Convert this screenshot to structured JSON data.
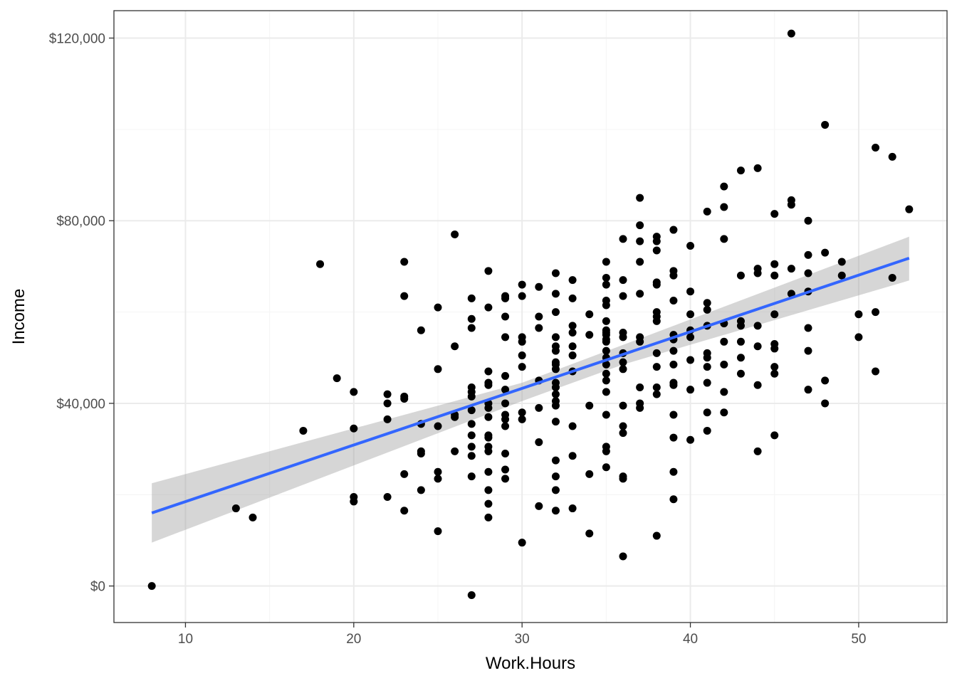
{
  "chart_data": {
    "type": "scatter",
    "title": "",
    "xlabel": "Work.Hours",
    "ylabel": "Income",
    "xlim": [
      5.75,
      55.25
    ],
    "ylim": [
      -8000,
      126000
    ],
    "x_ticks": [
      10,
      20,
      30,
      40,
      50
    ],
    "x_tick_labels": [
      "10",
      "20",
      "30",
      "40",
      "50"
    ],
    "y_ticks": [
      0,
      40000,
      80000,
      120000
    ],
    "y_tick_labels": [
      "$0",
      "$40,000",
      "$80,000",
      "$120,000"
    ],
    "grid": true,
    "theme": "bw",
    "colors": {
      "points": "#000000",
      "fit_line": "#3366ff",
      "ribbon": "#999999",
      "grid_major": "#ebebeb",
      "grid_minor": "#f5f5f5",
      "border": "#333333"
    },
    "fit": {
      "method": "lm",
      "x_range": [
        8,
        53
      ],
      "line": [
        [
          8,
          16000
        ],
        [
          53,
          71800
        ]
      ],
      "ci_lower": [
        [
          8,
          9500
        ],
        [
          30,
          40500
        ],
        [
          36,
          48500
        ],
        [
          53,
          66900
        ]
      ],
      "ci_upper": [
        [
          8,
          22500
        ],
        [
          30,
          44500
        ],
        [
          36,
          52800
        ],
        [
          53,
          76500
        ]
      ]
    },
    "points": [
      [
        8,
        0
      ],
      [
        13,
        17000
      ],
      [
        14,
        15000
      ],
      [
        17,
        34000
      ],
      [
        18,
        70500
      ],
      [
        19,
        45500
      ],
      [
        20,
        42500
      ],
      [
        20,
        34500
      ],
      [
        20,
        19500
      ],
      [
        20,
        18500
      ],
      [
        22,
        42000
      ],
      [
        22,
        40000
      ],
      [
        22,
        36500
      ],
      [
        22,
        19500
      ],
      [
        23,
        71000
      ],
      [
        23,
        63500
      ],
      [
        23,
        41500
      ],
      [
        23,
        41000
      ],
      [
        23,
        24500
      ],
      [
        23,
        16500
      ],
      [
        24,
        56000
      ],
      [
        24,
        35500
      ],
      [
        24,
        29500
      ],
      [
        24,
        29000
      ],
      [
        24,
        21000
      ],
      [
        25,
        61000
      ],
      [
        25,
        47500
      ],
      [
        25,
        35000
      ],
      [
        25,
        25000
      ],
      [
        25,
        23500
      ],
      [
        25,
        12000
      ],
      [
        26,
        77000
      ],
      [
        26,
        52500
      ],
      [
        26,
        37500
      ],
      [
        26,
        37000
      ],
      [
        26,
        29500
      ],
      [
        27,
        63000
      ],
      [
        27,
        58500
      ],
      [
        27,
        56500
      ],
      [
        27,
        43500
      ],
      [
        27,
        42500
      ],
      [
        27,
        41500
      ],
      [
        27,
        38500
      ],
      [
        27,
        35500
      ],
      [
        27,
        33000
      ],
      [
        27,
        30500
      ],
      [
        27,
        28500
      ],
      [
        27,
        24000
      ],
      [
        27,
        -2000
      ],
      [
        28,
        69000
      ],
      [
        28,
        61000
      ],
      [
        28,
        47000
      ],
      [
        28,
        44500
      ],
      [
        28,
        44000
      ],
      [
        28,
        40000
      ],
      [
        28,
        39000
      ],
      [
        28,
        37000
      ],
      [
        28,
        33000
      ],
      [
        28,
        32500
      ],
      [
        28,
        30500
      ],
      [
        28,
        29500
      ],
      [
        28,
        25000
      ],
      [
        28,
        21000
      ],
      [
        28,
        18000
      ],
      [
        28,
        15000
      ],
      [
        29,
        63500
      ],
      [
        29,
        63000
      ],
      [
        29,
        59000
      ],
      [
        29,
        54500
      ],
      [
        29,
        46000
      ],
      [
        29,
        43000
      ],
      [
        29,
        40000
      ],
      [
        29,
        37500
      ],
      [
        29,
        36500
      ],
      [
        29,
        35000
      ],
      [
        29,
        29000
      ],
      [
        29,
        25500
      ],
      [
        29,
        23500
      ],
      [
        30,
        66000
      ],
      [
        30,
        63500
      ],
      [
        30,
        54500
      ],
      [
        30,
        53500
      ],
      [
        30,
        50500
      ],
      [
        30,
        48000
      ],
      [
        30,
        38000
      ],
      [
        30,
        36500
      ],
      [
        30,
        9500
      ],
      [
        31,
        65500
      ],
      [
        31,
        59000
      ],
      [
        31,
        56500
      ],
      [
        31,
        45000
      ],
      [
        31,
        39000
      ],
      [
        31,
        31500
      ],
      [
        31,
        17500
      ],
      [
        32,
        68500
      ],
      [
        32,
        64000
      ],
      [
        32,
        60000
      ],
      [
        32,
        54500
      ],
      [
        32,
        52500
      ],
      [
        32,
        51500
      ],
      [
        32,
        49000
      ],
      [
        32,
        48500
      ],
      [
        32,
        47500
      ],
      [
        32,
        44500
      ],
      [
        32,
        43500
      ],
      [
        32,
        42000
      ],
      [
        32,
        40500
      ],
      [
        32,
        39500
      ],
      [
        32,
        36000
      ],
      [
        32,
        27500
      ],
      [
        32,
        24000
      ],
      [
        32,
        21000
      ],
      [
        32,
        16500
      ],
      [
        33,
        67000
      ],
      [
        33,
        63000
      ],
      [
        33,
        57000
      ],
      [
        33,
        55500
      ],
      [
        33,
        52500
      ],
      [
        33,
        50500
      ],
      [
        33,
        47000
      ],
      [
        33,
        35000
      ],
      [
        33,
        28500
      ],
      [
        33,
        17000
      ],
      [
        34,
        59500
      ],
      [
        34,
        55000
      ],
      [
        34,
        39500
      ],
      [
        34,
        24500
      ],
      [
        34,
        11500
      ],
      [
        35,
        71000
      ],
      [
        35,
        67500
      ],
      [
        35,
        66000
      ],
      [
        35,
        62500
      ],
      [
        35,
        61500
      ],
      [
        35,
        58000
      ],
      [
        35,
        56000
      ],
      [
        35,
        55500
      ],
      [
        35,
        55000
      ],
      [
        35,
        54000
      ],
      [
        35,
        53500
      ],
      [
        35,
        51500
      ],
      [
        35,
        50000
      ],
      [
        35,
        48500
      ],
      [
        35,
        46500
      ],
      [
        35,
        45000
      ],
      [
        35,
        42500
      ],
      [
        35,
        37500
      ],
      [
        35,
        30500
      ],
      [
        35,
        29500
      ],
      [
        35,
        26000
      ],
      [
        36,
        76000
      ],
      [
        36,
        67000
      ],
      [
        36,
        63500
      ],
      [
        36,
        55500
      ],
      [
        36,
        54500
      ],
      [
        36,
        51000
      ],
      [
        36,
        49000
      ],
      [
        36,
        47500
      ],
      [
        36,
        39500
      ],
      [
        36,
        35000
      ],
      [
        36,
        33500
      ],
      [
        36,
        24000
      ],
      [
        36,
        23500
      ],
      [
        36,
        6500
      ],
      [
        37,
        85000
      ],
      [
        37,
        79000
      ],
      [
        37,
        75500
      ],
      [
        37,
        71000
      ],
      [
        37,
        64000
      ],
      [
        37,
        54500
      ],
      [
        37,
        53500
      ],
      [
        37,
        43500
      ],
      [
        37,
        40000
      ],
      [
        37,
        39000
      ],
      [
        38,
        76500
      ],
      [
        38,
        75500
      ],
      [
        38,
        73500
      ],
      [
        38,
        66500
      ],
      [
        38,
        66000
      ],
      [
        38,
        60000
      ],
      [
        38,
        59000
      ],
      [
        38,
        58000
      ],
      [
        38,
        51000
      ],
      [
        38,
        48000
      ],
      [
        38,
        43500
      ],
      [
        38,
        42000
      ],
      [
        38,
        11000
      ],
      [
        39,
        78000
      ],
      [
        39,
        69000
      ],
      [
        39,
        68000
      ],
      [
        39,
        62500
      ],
      [
        39,
        55000
      ],
      [
        39,
        54000
      ],
      [
        39,
        51500
      ],
      [
        39,
        48500
      ],
      [
        39,
        44500
      ],
      [
        39,
        44000
      ],
      [
        39,
        37500
      ],
      [
        39,
        32500
      ],
      [
        39,
        25000
      ],
      [
        39,
        19000
      ],
      [
        40,
        74500
      ],
      [
        40,
        64500
      ],
      [
        40,
        59500
      ],
      [
        40,
        56000
      ],
      [
        40,
        54500
      ],
      [
        40,
        49500
      ],
      [
        40,
        43000
      ],
      [
        40,
        32000
      ],
      [
        41,
        82000
      ],
      [
        41,
        62000
      ],
      [
        41,
        60500
      ],
      [
        41,
        57000
      ],
      [
        41,
        51000
      ],
      [
        41,
        50000
      ],
      [
        41,
        48000
      ],
      [
        41,
        44500
      ],
      [
        41,
        38000
      ],
      [
        41,
        34000
      ],
      [
        42,
        87500
      ],
      [
        42,
        83000
      ],
      [
        42,
        76000
      ],
      [
        42,
        57500
      ],
      [
        42,
        53500
      ],
      [
        42,
        48500
      ],
      [
        42,
        42500
      ],
      [
        42,
        38000
      ],
      [
        43,
        91000
      ],
      [
        43,
        68000
      ],
      [
        43,
        58000
      ],
      [
        43,
        57000
      ],
      [
        43,
        53500
      ],
      [
        43,
        50000
      ],
      [
        43,
        46500
      ],
      [
        44,
        91500
      ],
      [
        44,
        69500
      ],
      [
        44,
        68500
      ],
      [
        44,
        57000
      ],
      [
        44,
        52500
      ],
      [
        44,
        44000
      ],
      [
        44,
        29500
      ],
      [
        45,
        81500
      ],
      [
        45,
        70500
      ],
      [
        45,
        68000
      ],
      [
        45,
        59500
      ],
      [
        45,
        53000
      ],
      [
        45,
        52000
      ],
      [
        45,
        48000
      ],
      [
        45,
        46500
      ],
      [
        45,
        33000
      ],
      [
        46,
        121000
      ],
      [
        46,
        84500
      ],
      [
        46,
        83500
      ],
      [
        46,
        69500
      ],
      [
        46,
        64000
      ],
      [
        47,
        80000
      ],
      [
        47,
        72500
      ],
      [
        47,
        68500
      ],
      [
        47,
        64500
      ],
      [
        47,
        56500
      ],
      [
        47,
        51500
      ],
      [
        47,
        43000
      ],
      [
        48,
        101000
      ],
      [
        48,
        73000
      ],
      [
        48,
        45000
      ],
      [
        48,
        40000
      ],
      [
        49,
        71000
      ],
      [
        49,
        68000
      ],
      [
        50,
        59500
      ],
      [
        50,
        54500
      ],
      [
        51,
        96000
      ],
      [
        51,
        60000
      ],
      [
        51,
        47000
      ],
      [
        52,
        94000
      ],
      [
        52,
        67500
      ],
      [
        53,
        82500
      ]
    ]
  }
}
